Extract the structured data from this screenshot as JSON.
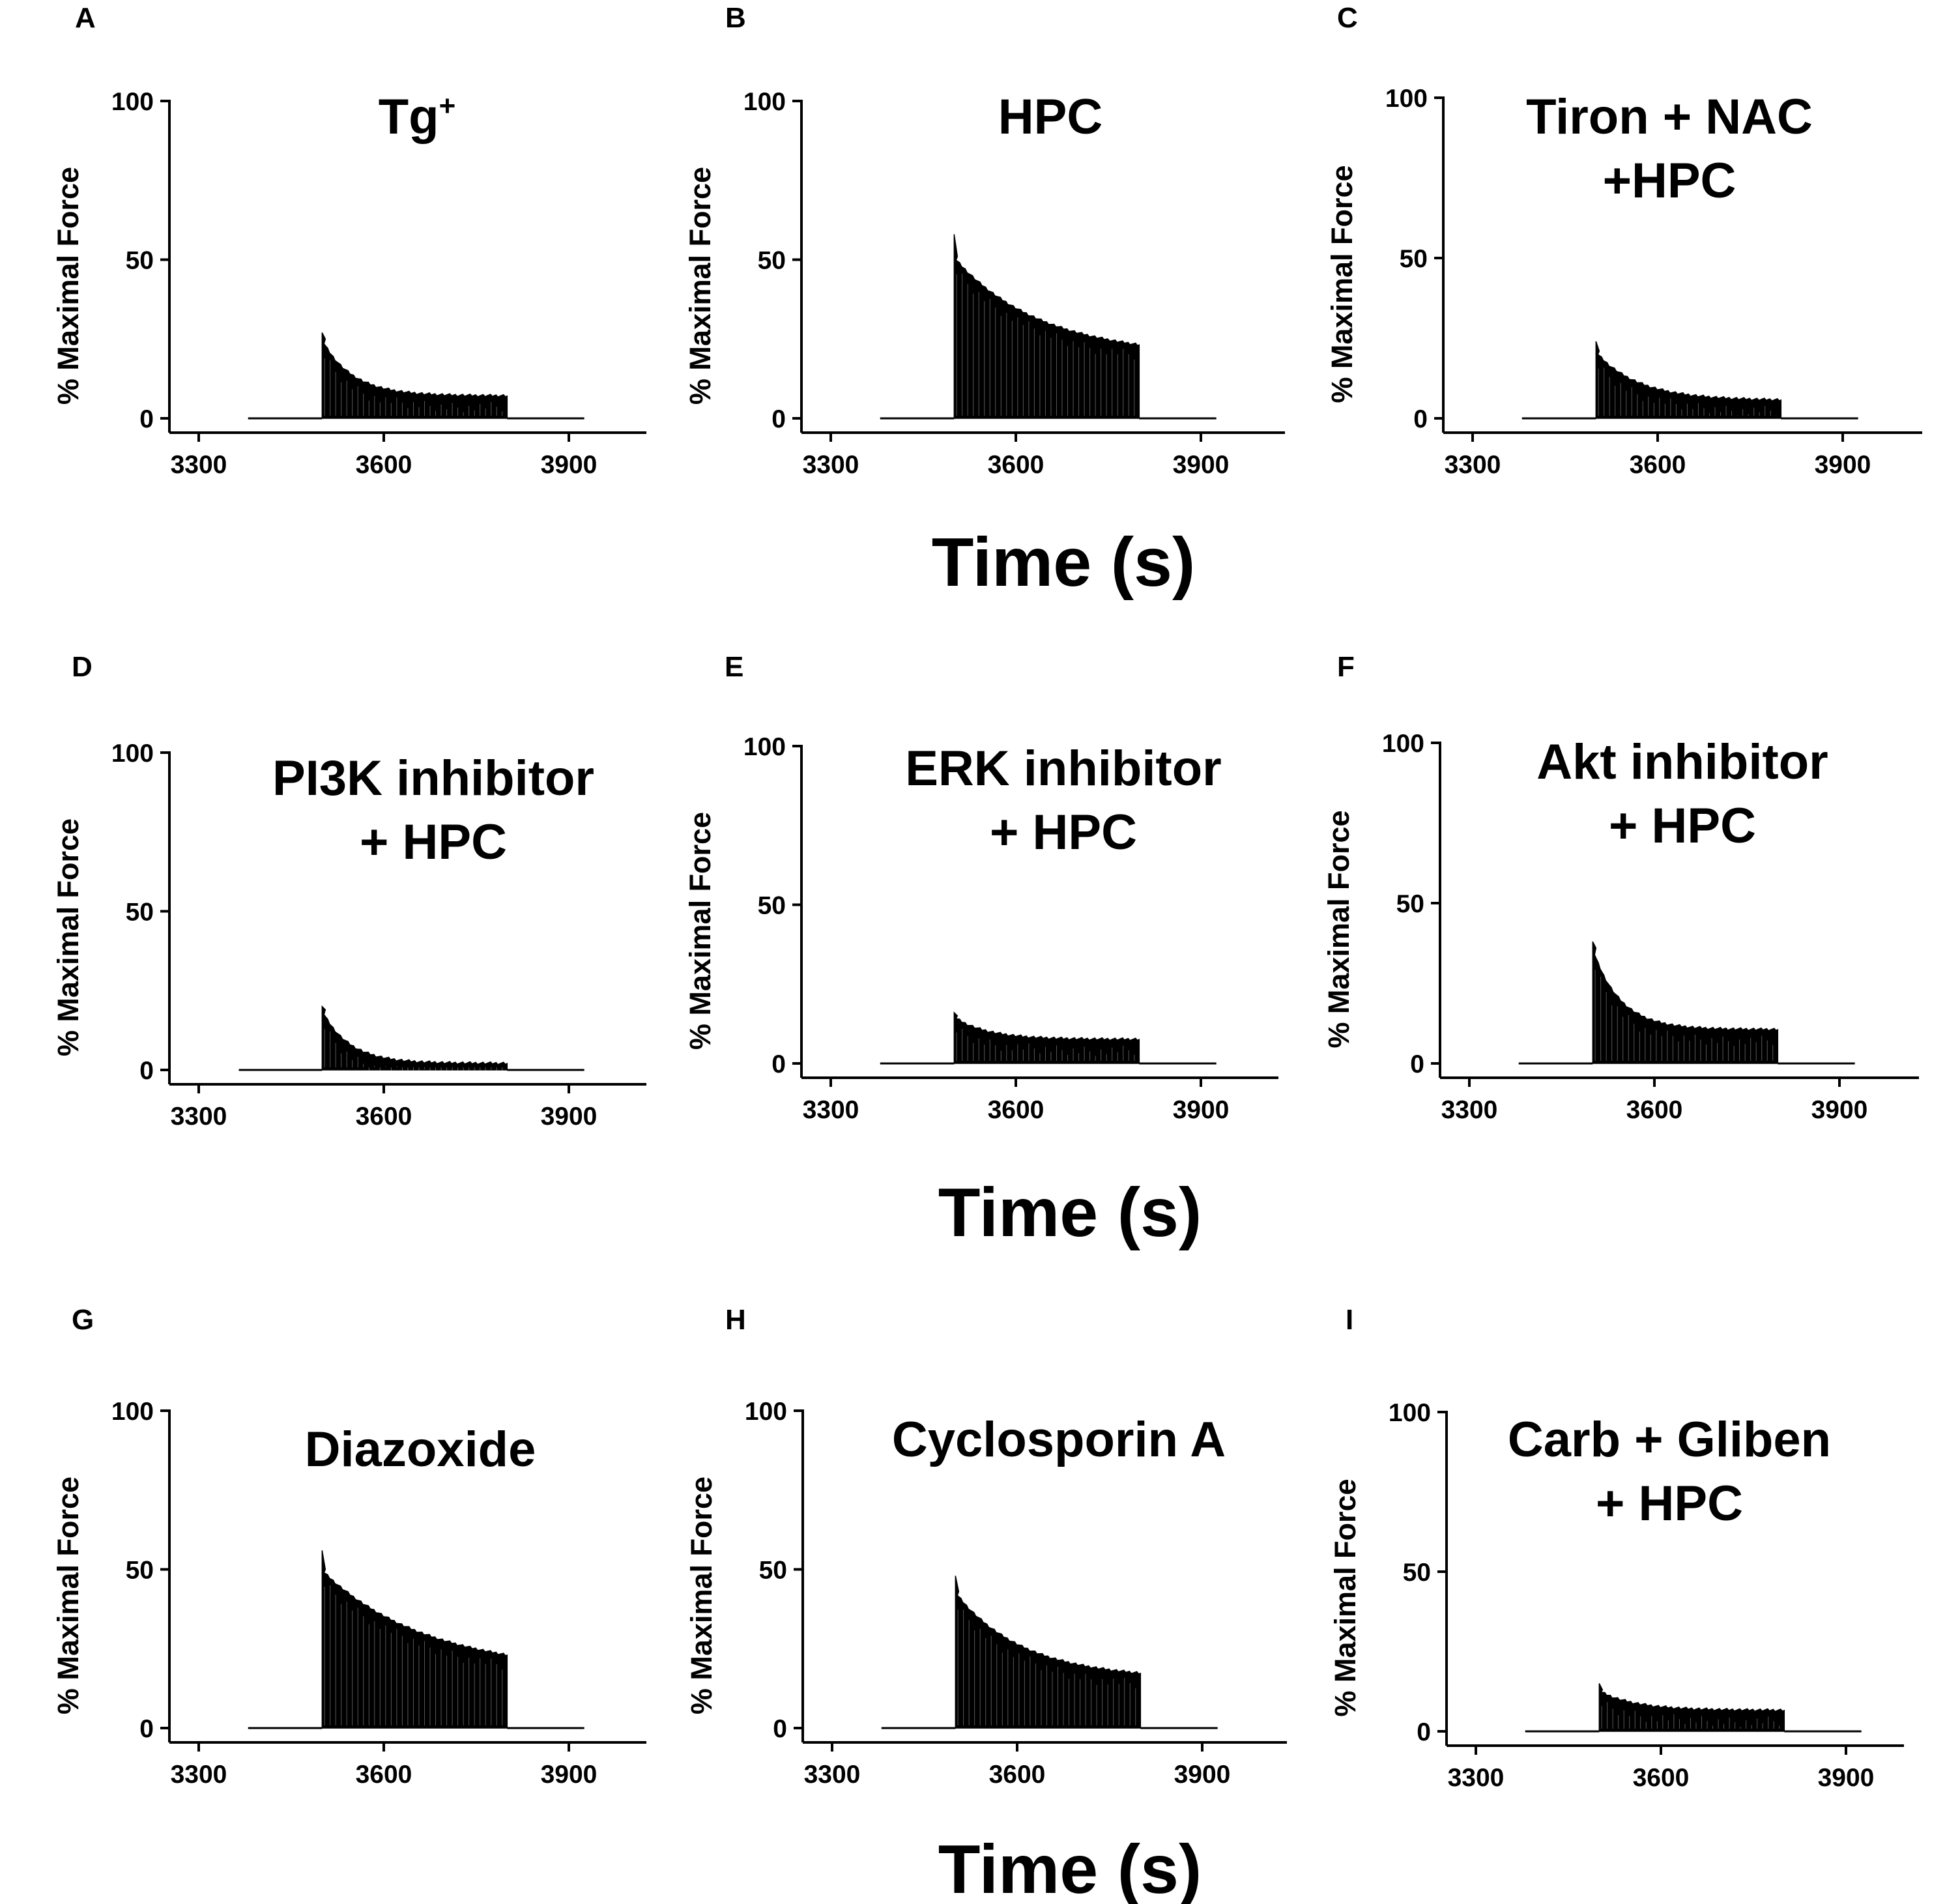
{
  "x_axis_label": "Time (s)",
  "colors": {
    "trace": "#000000",
    "axis": "#000000",
    "background": "#ffffff"
  },
  "chart_data": [
    {
      "panel": "A",
      "type": "line",
      "title": [
        "Tg"
      ],
      "title_superscript": "+",
      "ylabel": "% Maximal Force",
      "xlabel": "Time (s)",
      "xlim": [
        3230,
        4050
      ],
      "ylim": [
        -4,
        100
      ],
      "xticks": [
        "3300",
        "3600",
        "3900"
      ],
      "yticks": [
        "0",
        "50",
        "100"
      ],
      "baseline_start": 3380,
      "baseline_end": 3925,
      "stim_start": 3500,
      "stim_end": 3800,
      "peak": 27,
      "initial": 25,
      "final": 7.5,
      "decay_tau": 50
    },
    {
      "panel": "B",
      "type": "line",
      "title": [
        "HPC"
      ],
      "ylabel": "% Maximal Force",
      "xlabel": "Time (s)",
      "xlim": [
        3230,
        4050
      ],
      "ylim": [
        -4,
        100
      ],
      "xticks": [
        "3300",
        "3600",
        "3900"
      ],
      "yticks": [
        "0",
        "50",
        "100"
      ],
      "baseline_start": 3380,
      "baseline_end": 3925,
      "stim_start": 3500,
      "stim_end": 3800,
      "peak": 58,
      "initial": 51,
      "final": 20,
      "decay_tau": 140
    },
    {
      "panel": "C",
      "type": "line",
      "title": [
        "Tiron + NAC",
        "+HPC"
      ],
      "ylabel": "% Maximal Force",
      "xlabel": "Time (s)",
      "xlim": [
        3230,
        4050
      ],
      "ylim": [
        -4,
        100
      ],
      "xticks": [
        "3300",
        "3600",
        "3900"
      ],
      "yticks": [
        "0",
        "50",
        "100"
      ],
      "baseline_start": 3380,
      "baseline_end": 3925,
      "stim_start": 3500,
      "stim_end": 3800,
      "peak": 24,
      "initial": 21,
      "final": 6,
      "decay_tau": 70
    },
    {
      "panel": "D",
      "type": "line",
      "title": [
        "PI3K inhibitor",
        "+ HPC"
      ],
      "ylabel": "% Maximal Force",
      "xlabel": "Time (s)",
      "xlim": [
        3230,
        4050
      ],
      "ylim": [
        -4,
        100
      ],
      "xticks": [
        "3300",
        "3600",
        "3900"
      ],
      "yticks": [
        "0",
        "50",
        "100"
      ],
      "baseline_start": 3365,
      "baseline_end": 3925,
      "stim_start": 3500,
      "stim_end": 3800,
      "peak": 20,
      "initial": 19,
      "final": 2.5,
      "decay_tau": 45
    },
    {
      "panel": "E",
      "type": "line",
      "title": [
        "ERK inhibitor",
        "+ HPC"
      ],
      "ylabel": "% Maximal Force",
      "xlabel": "Time (s)",
      "xlim": [
        3230,
        4050
      ],
      "ylim": [
        -4,
        100
      ],
      "xticks": [
        "3300",
        "3600",
        "3900"
      ],
      "yticks": [
        "0",
        "50",
        "100"
      ],
      "baseline_start": 3380,
      "baseline_end": 3925,
      "stim_start": 3500,
      "stim_end": 3800,
      "peak": 16,
      "initial": 15,
      "final": 8,
      "decay_tau": 55
    },
    {
      "panel": "F",
      "type": "line",
      "title": [
        "Akt inhibitor",
        "+ HPC"
      ],
      "ylabel": "% Maximal Force",
      "xlabel": "Time (s)",
      "xlim": [
        3230,
        4050
      ],
      "ylim": [
        -4,
        100
      ],
      "xticks": [
        "3300",
        "3600",
        "3900"
      ],
      "yticks": [
        "0",
        "50",
        "100"
      ],
      "baseline_start": 3380,
      "baseline_end": 3925,
      "stim_start": 3500,
      "stim_end": 3800,
      "peak": 38,
      "initial": 36,
      "final": 11,
      "decay_tau": 45
    },
    {
      "panel": "G",
      "type": "line",
      "title": [
        "Diazoxide"
      ],
      "ylabel": "% Maximal Force",
      "xlabel": "Time (s)",
      "xlim": [
        3230,
        4050
      ],
      "ylim": [
        -4,
        100
      ],
      "xticks": [
        "3300",
        "3600",
        "3900"
      ],
      "yticks": [
        "0",
        "50",
        "100"
      ],
      "baseline_start": 3380,
      "baseline_end": 3925,
      "stim_start": 3500,
      "stim_end": 3800,
      "peak": 56,
      "initial": 50,
      "final": 18,
      "decay_tau": 170
    },
    {
      "panel": "H",
      "type": "line",
      "title": [
        "Cyclosporin A"
      ],
      "ylabel": "% Maximal Force",
      "xlabel": "Time (s)",
      "xlim": [
        3230,
        4050
      ],
      "ylim": [
        -4,
        100
      ],
      "xticks": [
        "3300",
        "3600",
        "3900"
      ],
      "yticks": [
        "0",
        "50",
        "100"
      ],
      "baseline_start": 3380,
      "baseline_end": 3925,
      "stim_start": 3500,
      "stim_end": 3800,
      "peak": 48,
      "initial": 43,
      "final": 16,
      "decay_tau": 110
    },
    {
      "panel": "I",
      "type": "line",
      "title": [
        "Carb + Gliben",
        "+ HPC"
      ],
      "ylabel": "% Maximal Force",
      "xlabel": "Time (s)",
      "xlim": [
        3230,
        4050
      ],
      "ylim": [
        -4,
        100
      ],
      "xticks": [
        "3300",
        "3600",
        "3900"
      ],
      "yticks": [
        "0",
        "50",
        "100"
      ],
      "baseline_start": 3380,
      "baseline_end": 3925,
      "stim_start": 3500,
      "stim_end": 3800,
      "peak": 15,
      "initial": 13,
      "final": 7,
      "decay_tau": 60
    }
  ]
}
